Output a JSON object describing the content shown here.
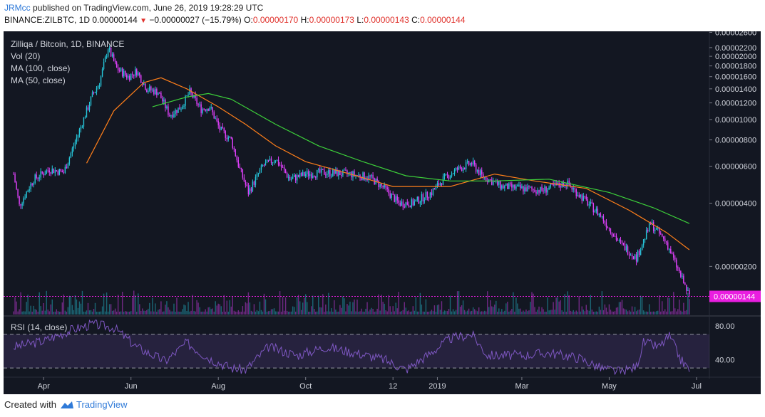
{
  "header": {
    "user": "JRMcc",
    "published": "published on TradingView.com, June 26, 2019 19:28:29 UTC",
    "symbol_line": "BINANCE:ZILBTC, 1D 0.00000144",
    "change": "−0.00000027 (−15.79%)",
    "o_label": "O:",
    "o_value": "0.00000170",
    "h_label": "H:",
    "h_value": "0.00000173",
    "l_label": "L:",
    "l_value": "0.00000143",
    "c_label": "C:",
    "c_value": "0.00000144"
  },
  "legend": {
    "title": "Zilliqa / Bitcoin, 1D, BINANCE",
    "vol": "Vol (20)",
    "ma100": "MA (100, close)",
    "ma50": "MA (50, close)",
    "rsi": "RSI (14, close)"
  },
  "footer": {
    "created": "Created with",
    "brand": "TradingView"
  },
  "colors": {
    "background": "#131722",
    "up": "#26c6da",
    "down": "#e040fb",
    "ma50": "#ff7f1a",
    "ma100": "#3dd13a",
    "rsi": "#7e57c2",
    "last_price_tag": "#e91ee0"
  },
  "chart_data": {
    "type": "candlestick",
    "title": "Zilliqa / Bitcoin, 1D, BINANCE",
    "ylim": [
      8e-07,
      2.6e-06
    ],
    "y_scale": "log",
    "y_ticks": [
      "0.00002600",
      "0.00002200",
      "0.00002000",
      "0.00001800",
      "0.00001600",
      "0.00001400",
      "0.00001200",
      "0.00001000",
      "0.00000800",
      "0.00000600",
      "0.00000400",
      "0.00000200"
    ],
    "y_tick_values": [
      2.6e-05,
      2.2e-05,
      2e-05,
      1.8e-05,
      1.6e-05,
      1.4e-05,
      1.2e-05,
      1e-05,
      8e-06,
      6e-06,
      4e-06,
      2e-06
    ],
    "x_ticks": [
      "Apr",
      "Jun",
      "Aug",
      "Oct",
      "12",
      "2019",
      "Mar",
      "May",
      "Jul"
    ],
    "last_price": "0.00000144",
    "close_path": [
      [
        "2018-03-11",
        5.5e-06
      ],
      [
        "2018-03-15",
        3.9e-06
      ],
      [
        "2018-03-25",
        5.2e-06
      ],
      [
        "2018-04-05",
        5.8e-06
      ],
      [
        "2018-04-15",
        5.6e-06
      ],
      [
        "2018-04-25",
        8.5e-06
      ],
      [
        "2018-05-05",
        1.3e-05
      ],
      [
        "2018-05-10",
        1.5e-05
      ],
      [
        "2018-05-16",
        2.2e-05
      ],
      [
        "2018-05-22",
        1.75e-05
      ],
      [
        "2018-05-30",
        1.6e-05
      ],
      [
        "2018-06-05",
        1.7e-05
      ],
      [
        "2018-06-12",
        1.4e-05
      ],
      [
        "2018-06-20",
        1.35e-05
      ],
      [
        "2018-06-28",
        1.05e-05
      ],
      [
        "2018-07-06",
        1.15e-05
      ],
      [
        "2018-07-12",
        1.35e-05
      ],
      [
        "2018-07-20",
        1.12e-05
      ],
      [
        "2018-07-26",
        1.15e-05
      ],
      [
        "2018-08-02",
        9e-06
      ],
      [
        "2018-08-10",
        8e-06
      ],
      [
        "2018-08-16",
        5.8e-06
      ],
      [
        "2018-08-22",
        4.5e-06
      ],
      [
        "2018-09-01",
        6e-06
      ],
      [
        "2018-09-10",
        6.5e-06
      ],
      [
        "2018-09-20",
        5.2e-06
      ],
      [
        "2018-10-01",
        5.5e-06
      ],
      [
        "2018-10-15",
        5.6e-06
      ],
      [
        "2018-11-01",
        5.5e-06
      ],
      [
        "2018-11-15",
        5.3e-06
      ],
      [
        "2018-11-25",
        4.7e-06
      ],
      [
        "2018-12-05",
        4e-06
      ],
      [
        "2018-12-15",
        4e-06
      ],
      [
        "2018-12-28",
        4.5e-06
      ],
      [
        "2019-01-05",
        5.2e-06
      ],
      [
        "2019-01-15",
        5.8e-06
      ],
      [
        "2019-01-25",
        6.2e-06
      ],
      [
        "2019-02-01",
        5.4e-06
      ],
      [
        "2019-02-15",
        4.8e-06
      ],
      [
        "2019-03-01",
        4.7e-06
      ],
      [
        "2019-03-15",
        4.6e-06
      ],
      [
        "2019-04-01",
        5e-06
      ],
      [
        "2019-04-10",
        4.4e-06
      ],
      [
        "2019-04-25",
        3.5e-06
      ],
      [
        "2019-05-08",
        2.6e-06
      ],
      [
        "2019-05-20",
        2.2e-06
      ],
      [
        "2019-05-30",
        3.2e-06
      ],
      [
        "2019-06-10",
        2.6e-06
      ],
      [
        "2019-06-20",
        1.8e-06
      ],
      [
        "2019-06-26",
        1.44e-06
      ]
    ],
    "ma50_path": [
      [
        "2018-05-01",
        6.2e-06
      ],
      [
        "2018-05-20",
        1.1e-05
      ],
      [
        "2018-06-10",
        1.5e-05
      ],
      [
        "2018-06-22",
        1.58e-05
      ],
      [
        "2018-07-10",
        1.4e-05
      ],
      [
        "2018-08-01",
        1.15e-05
      ],
      [
        "2018-08-20",
        9.5e-06
      ],
      [
        "2018-09-10",
        7.5e-06
      ],
      [
        "2018-10-01",
        6.3e-06
      ],
      [
        "2018-11-01",
        5.5e-06
      ],
      [
        "2018-12-01",
        4.8e-06
      ],
      [
        "2019-01-10",
        4.8e-06
      ],
      [
        "2019-02-10",
        5.5e-06
      ],
      [
        "2019-03-10",
        5.1e-06
      ],
      [
        "2019-04-15",
        4.7e-06
      ],
      [
        "2019-05-15",
        3.7e-06
      ],
      [
        "2019-06-10",
        2.9e-06
      ],
      [
        "2019-06-26",
        2.4e-06
      ]
    ],
    "ma100_path": [
      [
        "2018-06-16",
        1.15e-05
      ],
      [
        "2018-07-10",
        1.28e-05
      ],
      [
        "2018-07-25",
        1.33e-05
      ],
      [
        "2018-08-10",
        1.25e-05
      ],
      [
        "2018-09-10",
        9.5e-06
      ],
      [
        "2018-10-10",
        7.5e-06
      ],
      [
        "2018-11-10",
        6.3e-06
      ],
      [
        "2018-12-10",
        5.4e-06
      ],
      [
        "2019-01-10",
        5.1e-06
      ],
      [
        "2019-02-10",
        5.1e-06
      ],
      [
        "2019-03-20",
        5.2e-06
      ],
      [
        "2019-05-01",
        4.5e-06
      ],
      [
        "2019-06-01",
        3.8e-06
      ],
      [
        "2019-06-26",
        3.2e-06
      ]
    ],
    "rsi": {
      "name": "RSI (14, close)",
      "ylim": [
        20,
        90
      ],
      "levels": [
        70,
        30
      ],
      "y_ticks": [
        "80.00",
        "40.00"
      ],
      "y_tick_values": [
        80,
        40
      ],
      "path": [
        [
          "2018-03-11",
          55
        ],
        [
          "2018-04-01",
          62
        ],
        [
          "2018-04-20",
          75
        ],
        [
          "2018-05-05",
          82
        ],
        [
          "2018-05-20",
          78
        ],
        [
          "2018-06-05",
          55
        ],
        [
          "2018-06-25",
          38
        ],
        [
          "2018-07-10",
          60
        ],
        [
          "2018-07-25",
          42
        ],
        [
          "2018-08-10",
          30
        ],
        [
          "2018-08-20",
          28
        ],
        [
          "2018-09-05",
          55
        ],
        [
          "2018-09-25",
          45
        ],
        [
          "2018-10-15",
          55
        ],
        [
          "2018-11-05",
          48
        ],
        [
          "2018-11-25",
          40
        ],
        [
          "2018-12-10",
          28
        ],
        [
          "2018-12-25",
          45
        ],
        [
          "2019-01-10",
          65
        ],
        [
          "2019-01-25",
          70
        ],
        [
          "2019-02-05",
          45
        ],
        [
          "2019-03-01",
          45
        ],
        [
          "2019-03-20",
          48
        ],
        [
          "2019-04-10",
          42
        ],
        [
          "2019-04-25",
          30
        ],
        [
          "2019-05-10",
          25
        ],
        [
          "2019-05-20",
          32
        ],
        [
          "2019-05-25",
          60
        ],
        [
          "2019-06-05",
          55
        ],
        [
          "2019-06-12",
          68
        ],
        [
          "2019-06-20",
          40
        ],
        [
          "2019-06-26",
          28
        ]
      ]
    }
  }
}
